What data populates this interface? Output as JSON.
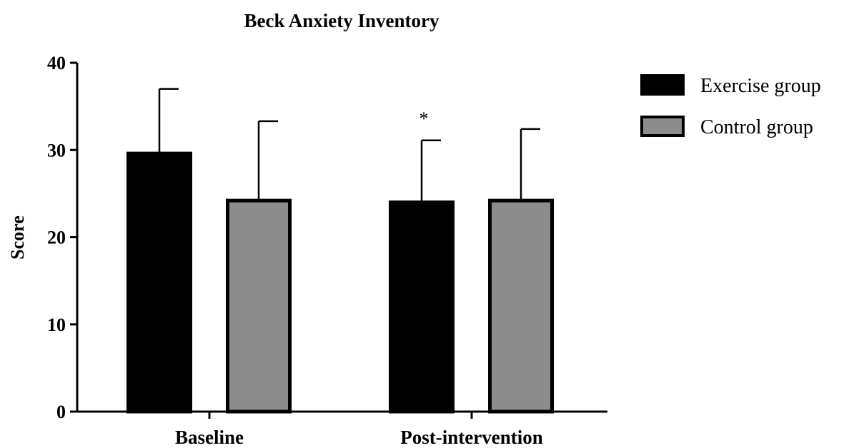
{
  "chart_data": {
    "type": "bar",
    "title": "Beck Anxiety Inventory",
    "xlabel": "",
    "ylabel": "Score",
    "ylim": [
      0,
      40
    ],
    "yticks": [
      "0",
      "10",
      "20",
      "30",
      "40"
    ],
    "categories": [
      "Baseline",
      "Post-intervention"
    ],
    "series": [
      {
        "name": "Exercise group",
        "color": "#000000",
        "values": [
          29.6,
          24.0
        ],
        "error": [
          7.4,
          7.1
        ]
      },
      {
        "name": "Control group",
        "color": "#8c8c8c",
        "values": [
          24.2,
          24.2
        ],
        "error": [
          9.1,
          8.2
        ]
      }
    ],
    "annotations": [
      {
        "text": "*",
        "category": "Post-intervention",
        "series": "Exercise group"
      }
    ],
    "legend_position": "right",
    "grid": false
  }
}
